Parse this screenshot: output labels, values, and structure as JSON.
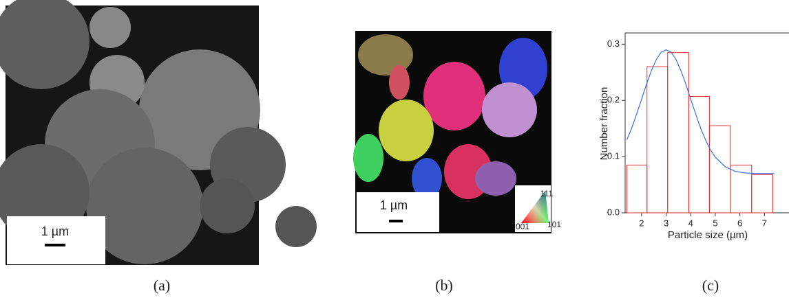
{
  "panels": {
    "a": {
      "label": "(a)",
      "scale_bar": "1 µm"
    },
    "b": {
      "label": "(b)",
      "scale_bar": "1 µm",
      "legend": {
        "top": "111",
        "left": "001",
        "right": "101"
      }
    },
    "c": {
      "label": "(c)"
    }
  },
  "chart_data": {
    "type": "histogram",
    "x_label": "Particle size (µm)",
    "y_label": "Number fraction",
    "xlim": [
      1.33,
      8.0
    ],
    "ylim": [
      0,
      0.32
    ],
    "xticks": [
      2,
      3,
      4,
      5,
      6,
      7
    ],
    "yticks": [
      {
        "value": 0,
        "label": "0.0"
      },
      0.1,
      0.2,
      0.3
    ],
    "series": [
      {
        "type": "histogram",
        "color": "#e03030",
        "bins": [
          1.4,
          2.22,
          3.06,
          3.92,
          4.76,
          5.62,
          6.48,
          7.34
        ],
        "values": [
          0.085,
          0.26,
          0.285,
          0.207,
          0.155,
          0.085,
          0.068
        ]
      },
      {
        "type": "line",
        "color": "#3a6fe0",
        "x": [
          1.4,
          1.6,
          1.8,
          2.0,
          2.2,
          2.4,
          2.6,
          2.8,
          3.0,
          3.2,
          3.4,
          3.6,
          3.8,
          4.0,
          4.2,
          4.4,
          4.6,
          4.8,
          5.0,
          5.4,
          5.8,
          6.2,
          6.6,
          7.0,
          7.4
        ],
        "values": [
          0.13,
          0.151,
          0.176,
          0.202,
          0.229,
          0.253,
          0.273,
          0.286,
          0.29,
          0.286,
          0.273,
          0.253,
          0.229,
          0.202,
          0.176,
          0.151,
          0.13,
          0.112,
          0.099,
          0.082,
          0.074,
          0.071,
          0.07,
          0.07,
          0.07
        ]
      }
    ]
  }
}
